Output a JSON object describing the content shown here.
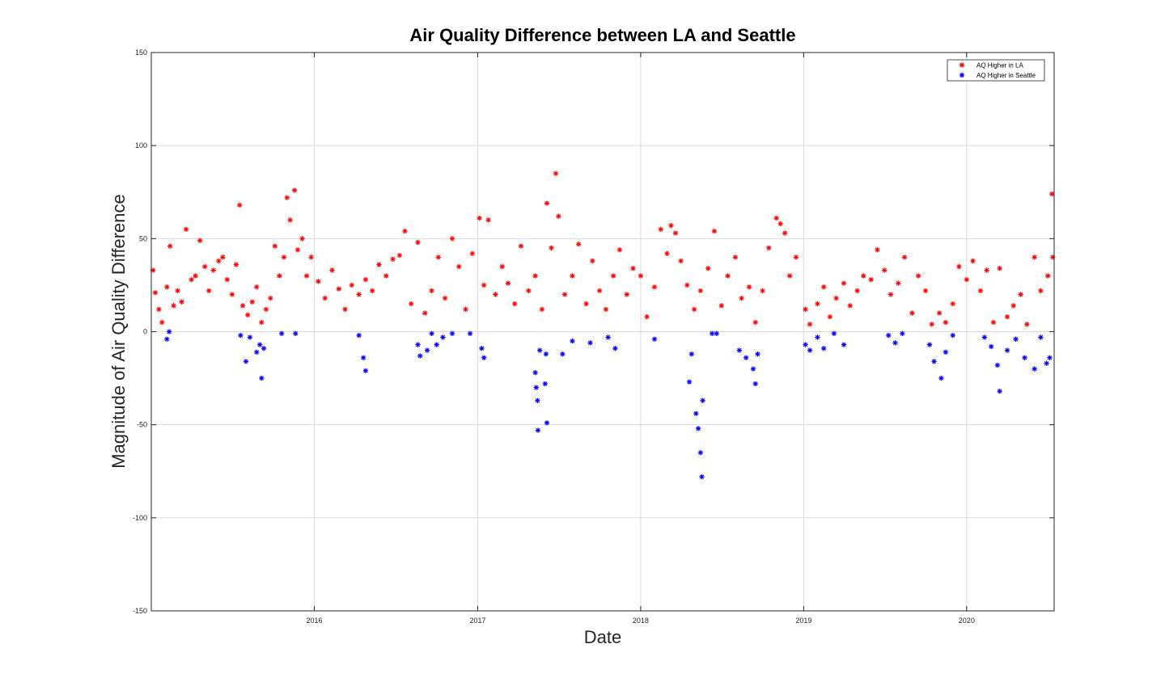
{
  "chart_data": {
    "type": "scatter",
    "title": "Air Quality Difference between LA and Seattle",
    "xlabel": "Date",
    "ylabel": "Magnitude of Air Quality Difference",
    "xlim": [
      "2015-01-01",
      "2020-07-15"
    ],
    "ylim": [
      -150,
      150
    ],
    "yticks": [
      -150,
      -100,
      -50,
      0,
      50,
      100,
      150
    ],
    "xticks": [
      {
        "date": "2016-01-01",
        "label": "2016"
      },
      {
        "date": "2017-01-01",
        "label": "2017"
      },
      {
        "date": "2018-01-01",
        "label": "2018"
      },
      {
        "date": "2019-01-01",
        "label": "2019"
      },
      {
        "date": "2020-01-01",
        "label": "2020"
      }
    ],
    "grid": true,
    "legend_position": "top-right",
    "marker": "*",
    "series": [
      {
        "name": "AQ Higher in LA",
        "color": "#ff0000",
        "points": [
          [
            "2015-01-05",
            33
          ],
          [
            "2015-01-10",
            21
          ],
          [
            "2015-01-18",
            12
          ],
          [
            "2015-01-25",
            5
          ],
          [
            "2015-02-05",
            24
          ],
          [
            "2015-02-12",
            46
          ],
          [
            "2015-02-20",
            14
          ],
          [
            "2015-03-01",
            22
          ],
          [
            "2015-03-10",
            16
          ],
          [
            "2015-03-20",
            55
          ],
          [
            "2015-04-01",
            28
          ],
          [
            "2015-04-10",
            30
          ],
          [
            "2015-04-20",
            49
          ],
          [
            "2015-05-01",
            35
          ],
          [
            "2015-05-10",
            22
          ],
          [
            "2015-05-20",
            33
          ],
          [
            "2015-06-01",
            38
          ],
          [
            "2015-06-10",
            40
          ],
          [
            "2015-06-20",
            28
          ],
          [
            "2015-07-01",
            20
          ],
          [
            "2015-07-10",
            36
          ],
          [
            "2015-07-18",
            68
          ],
          [
            "2015-07-25",
            14
          ],
          [
            "2015-08-05",
            9
          ],
          [
            "2015-08-15",
            16
          ],
          [
            "2015-08-25",
            24
          ],
          [
            "2015-09-05",
            5
          ],
          [
            "2015-09-15",
            12
          ],
          [
            "2015-09-25",
            18
          ],
          [
            "2015-10-05",
            46
          ],
          [
            "2015-10-15",
            30
          ],
          [
            "2015-10-25",
            40
          ],
          [
            "2015-11-01",
            72
          ],
          [
            "2015-11-08",
            60
          ],
          [
            "2015-11-18",
            76
          ],
          [
            "2015-11-25",
            44
          ],
          [
            "2015-12-05",
            50
          ],
          [
            "2015-12-15",
            30
          ],
          [
            "2015-12-25",
            40
          ],
          [
            "2016-01-10",
            27
          ],
          [
            "2016-01-25",
            18
          ],
          [
            "2016-02-10",
            33
          ],
          [
            "2016-02-25",
            23
          ],
          [
            "2016-03-10",
            12
          ],
          [
            "2016-03-25",
            25
          ],
          [
            "2016-04-10",
            20
          ],
          [
            "2016-04-25",
            28
          ],
          [
            "2016-05-10",
            22
          ],
          [
            "2016-05-25",
            36
          ],
          [
            "2016-06-10",
            30
          ],
          [
            "2016-06-25",
            39
          ],
          [
            "2016-07-10",
            41
          ],
          [
            "2016-07-22",
            54
          ],
          [
            "2016-08-05",
            15
          ],
          [
            "2016-08-20",
            48
          ],
          [
            "2016-09-05",
            10
          ],
          [
            "2016-09-20",
            22
          ],
          [
            "2016-10-05",
            40
          ],
          [
            "2016-10-20",
            18
          ],
          [
            "2016-11-05",
            50
          ],
          [
            "2016-11-20",
            35
          ],
          [
            "2016-12-05",
            12
          ],
          [
            "2016-12-20",
            42
          ],
          [
            "2017-01-05",
            61
          ],
          [
            "2017-01-15",
            25
          ],
          [
            "2017-01-25",
            60
          ],
          [
            "2017-02-10",
            20
          ],
          [
            "2017-02-25",
            35
          ],
          [
            "2017-03-10",
            26
          ],
          [
            "2017-03-25",
            15
          ],
          [
            "2017-04-08",
            46
          ],
          [
            "2017-04-25",
            22
          ],
          [
            "2017-05-10",
            30
          ],
          [
            "2017-05-25",
            12
          ],
          [
            "2017-06-05",
            69
          ],
          [
            "2017-06-15",
            45
          ],
          [
            "2017-06-25",
            85
          ],
          [
            "2017-07-01",
            62
          ],
          [
            "2017-07-15",
            20
          ],
          [
            "2017-08-01",
            30
          ],
          [
            "2017-08-15",
            47
          ],
          [
            "2017-09-01",
            15
          ],
          [
            "2017-09-15",
            38
          ],
          [
            "2017-10-01",
            22
          ],
          [
            "2017-10-15",
            12
          ],
          [
            "2017-11-01",
            30
          ],
          [
            "2017-11-15",
            44
          ],
          [
            "2017-12-01",
            20
          ],
          [
            "2017-12-15",
            34
          ],
          [
            "2018-01-01",
            30
          ],
          [
            "2018-01-15",
            8
          ],
          [
            "2018-02-01",
            24
          ],
          [
            "2018-02-15",
            55
          ],
          [
            "2018-03-01",
            42
          ],
          [
            "2018-03-10",
            57
          ],
          [
            "2018-03-20",
            53
          ],
          [
            "2018-04-01",
            38
          ],
          [
            "2018-04-15",
            25
          ],
          [
            "2018-05-01",
            12
          ],
          [
            "2018-05-15",
            22
          ],
          [
            "2018-06-01",
            34
          ],
          [
            "2018-06-15",
            54
          ],
          [
            "2018-07-01",
            14
          ],
          [
            "2018-07-15",
            30
          ],
          [
            "2018-08-01",
            40
          ],
          [
            "2018-08-15",
            18
          ],
          [
            "2018-09-01",
            24
          ],
          [
            "2018-09-15",
            5
          ],
          [
            "2018-10-01",
            22
          ],
          [
            "2018-10-15",
            45
          ],
          [
            "2018-11-01",
            61
          ],
          [
            "2018-11-10",
            58
          ],
          [
            "2018-11-20",
            53
          ],
          [
            "2018-12-01",
            30
          ],
          [
            "2018-12-15",
            40
          ],
          [
            "2019-01-05",
            12
          ],
          [
            "2019-01-15",
            4
          ],
          [
            "2019-02-01",
            15
          ],
          [
            "2019-02-15",
            24
          ],
          [
            "2019-03-01",
            8
          ],
          [
            "2019-03-15",
            18
          ],
          [
            "2019-04-01",
            26
          ],
          [
            "2019-04-15",
            14
          ],
          [
            "2019-05-01",
            22
          ],
          [
            "2019-05-15",
            30
          ],
          [
            "2019-06-01",
            28
          ],
          [
            "2019-06-15",
            44
          ],
          [
            "2019-07-01",
            33
          ],
          [
            "2019-07-15",
            20
          ],
          [
            "2019-08-01",
            26
          ],
          [
            "2019-08-15",
            40
          ],
          [
            "2019-09-01",
            10
          ],
          [
            "2019-09-15",
            30
          ],
          [
            "2019-10-01",
            22
          ],
          [
            "2019-10-15",
            4
          ],
          [
            "2019-11-01",
            10
          ],
          [
            "2019-11-15",
            5
          ],
          [
            "2019-12-01",
            15
          ],
          [
            "2019-12-15",
            35
          ],
          [
            "2020-01-01",
            28
          ],
          [
            "2020-01-15",
            38
          ],
          [
            "2020-02-01",
            22
          ],
          [
            "2020-02-15",
            33
          ],
          [
            "2020-03-01",
            5
          ],
          [
            "2020-03-15",
            34
          ],
          [
            "2020-04-01",
            8
          ],
          [
            "2020-04-15",
            14
          ],
          [
            "2020-05-01",
            20
          ],
          [
            "2020-05-15",
            4
          ],
          [
            "2020-06-01",
            40
          ],
          [
            "2020-06-15",
            22
          ],
          [
            "2020-07-01",
            30
          ],
          [
            "2020-07-10",
            74
          ],
          [
            "2020-07-12",
            40
          ]
        ]
      },
      {
        "name": "AQ Higher in Seattle",
        "color": "#0000ff",
        "points": [
          [
            "2015-02-05",
            -4
          ],
          [
            "2015-02-10",
            0
          ],
          [
            "2015-07-20",
            -2
          ],
          [
            "2015-08-01",
            -16
          ],
          [
            "2015-08-10",
            -3
          ],
          [
            "2015-08-25",
            -11
          ],
          [
            "2015-09-01",
            -7
          ],
          [
            "2015-09-05",
            -25
          ],
          [
            "2015-09-10",
            -9
          ],
          [
            "2015-10-20",
            -1
          ],
          [
            "2015-11-20",
            -1
          ],
          [
            "2016-04-10",
            -2
          ],
          [
            "2016-04-20",
            -14
          ],
          [
            "2016-04-25",
            -21
          ],
          [
            "2016-08-20",
            -7
          ],
          [
            "2016-08-25",
            -13
          ],
          [
            "2016-09-10",
            -10
          ],
          [
            "2016-09-20",
            -1
          ],
          [
            "2016-10-01",
            -7
          ],
          [
            "2016-10-15",
            -3
          ],
          [
            "2016-11-05",
            -1
          ],
          [
            "2016-12-15",
            -1
          ],
          [
            "2017-01-10",
            -9
          ],
          [
            "2017-01-15",
            -14
          ],
          [
            "2017-05-10",
            -22
          ],
          [
            "2017-05-12",
            -30
          ],
          [
            "2017-05-15",
            -37
          ],
          [
            "2017-05-16",
            -53
          ],
          [
            "2017-05-20",
            -10
          ],
          [
            "2017-06-01",
            -28
          ],
          [
            "2017-06-03",
            -12
          ],
          [
            "2017-06-05",
            -49
          ],
          [
            "2017-07-10",
            -12
          ],
          [
            "2017-08-01",
            -5
          ],
          [
            "2017-09-10",
            -6
          ],
          [
            "2017-10-20",
            -3
          ],
          [
            "2017-11-05",
            -9
          ],
          [
            "2018-02-01",
            -4
          ],
          [
            "2018-04-20",
            -27
          ],
          [
            "2018-04-25",
            -12
          ],
          [
            "2018-05-05",
            -44
          ],
          [
            "2018-05-10",
            -52
          ],
          [
            "2018-05-15",
            -65
          ],
          [
            "2018-05-18",
            -78
          ],
          [
            "2018-05-20",
            -37
          ],
          [
            "2018-06-10",
            -1
          ],
          [
            "2018-06-20",
            -1
          ],
          [
            "2018-08-10",
            -10
          ],
          [
            "2018-08-25",
            -14
          ],
          [
            "2018-09-10",
            -20
          ],
          [
            "2018-09-15",
            -28
          ],
          [
            "2018-09-20",
            -12
          ],
          [
            "2019-01-05",
            -7
          ],
          [
            "2019-01-15",
            -10
          ],
          [
            "2019-02-01",
            -3
          ],
          [
            "2019-02-15",
            -9
          ],
          [
            "2019-03-10",
            -1
          ],
          [
            "2019-04-01",
            -7
          ],
          [
            "2019-07-10",
            -2
          ],
          [
            "2019-07-25",
            -6
          ],
          [
            "2019-08-10",
            -1
          ],
          [
            "2019-10-10",
            -7
          ],
          [
            "2019-10-20",
            -16
          ],
          [
            "2019-11-05",
            -25
          ],
          [
            "2019-11-15",
            -11
          ],
          [
            "2019-12-01",
            -2
          ],
          [
            "2020-02-10",
            -3
          ],
          [
            "2020-02-25",
            -8
          ],
          [
            "2020-03-10",
            -18
          ],
          [
            "2020-03-15",
            -32
          ],
          [
            "2020-04-01",
            -10
          ],
          [
            "2020-04-20",
            -4
          ],
          [
            "2020-05-10",
            -14
          ],
          [
            "2020-06-01",
            -20
          ],
          [
            "2020-06-15",
            -3
          ],
          [
            "2020-06-28",
            -17
          ],
          [
            "2020-07-05",
            -14
          ]
        ]
      }
    ]
  }
}
